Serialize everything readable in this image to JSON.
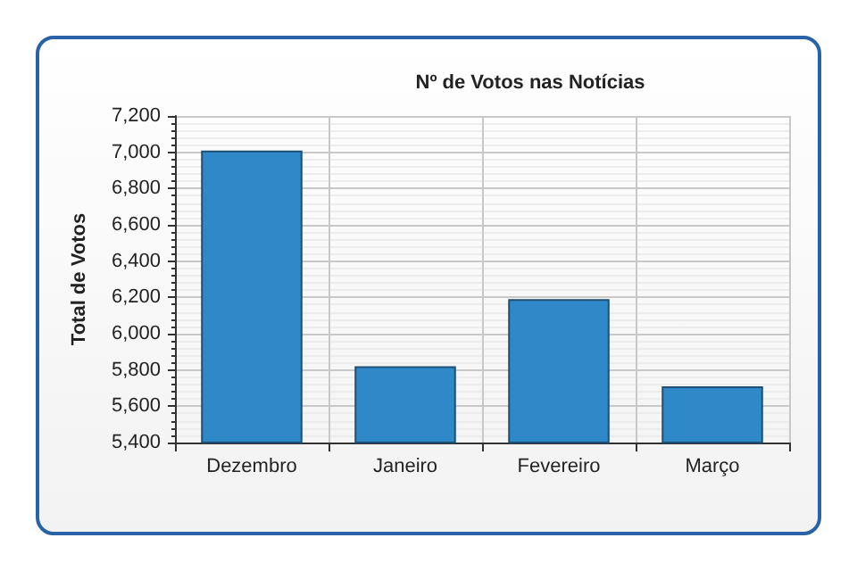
{
  "chart_data": {
    "type": "bar",
    "title": "Nº de Votos nas Notícias",
    "ylabel": "Total de Votos",
    "categories": [
      "Dezembro",
      "Janeiro",
      "Fevereiro",
      "Março"
    ],
    "values": [
      7010,
      5820,
      6190,
      5710
    ],
    "color": "#2f88c8",
    "ylim": [
      5400,
      7200
    ],
    "yticks": [
      {
        "value": 5400,
        "label": "5,400"
      },
      {
        "value": 5600,
        "label": "5,600"
      },
      {
        "value": 5800,
        "label": "5,800"
      },
      {
        "value": 6000,
        "label": "6,000"
      },
      {
        "value": 6200,
        "label": "6,200"
      },
      {
        "value": 6400,
        "label": "6,400"
      },
      {
        "value": 6600,
        "label": "6,600"
      },
      {
        "value": 6800,
        "label": "6,800"
      },
      {
        "value": 7000,
        "label": "7,000"
      },
      {
        "value": 7200,
        "label": "7,200"
      }
    ],
    "grid": true
  }
}
